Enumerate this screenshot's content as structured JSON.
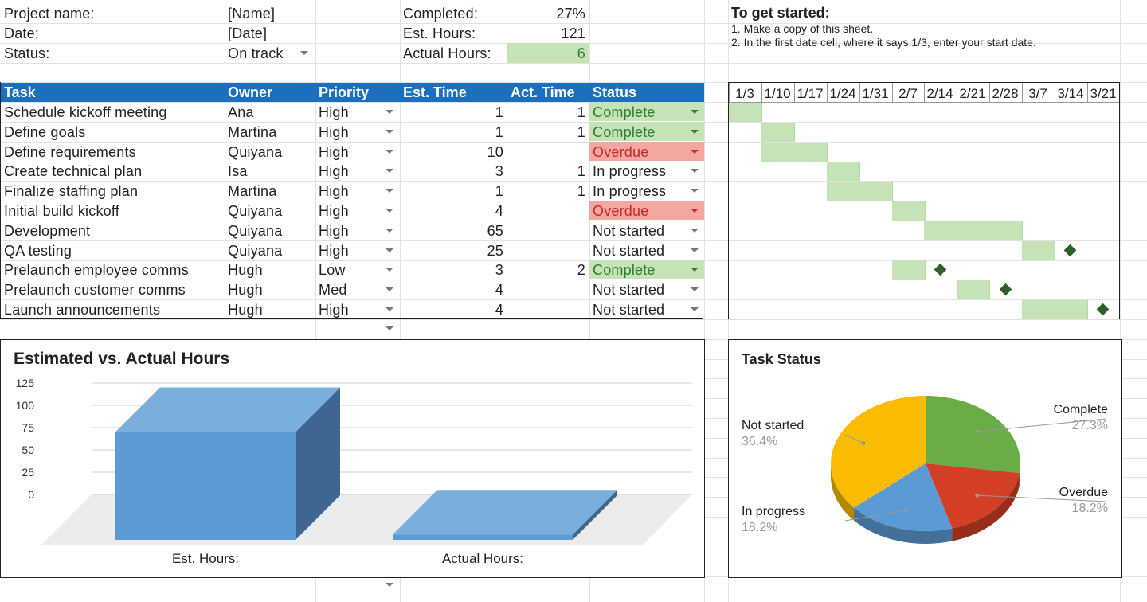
{
  "project": {
    "name_label": "Project name:",
    "name_value": "[Name]",
    "date_label": "Date:",
    "date_value": "[Date]",
    "status_label": "Status:",
    "status_value": "On track"
  },
  "summary": {
    "completed_label": "Completed:",
    "completed_value": "27%",
    "est_label": "Est. Hours:",
    "est_value": "121",
    "actual_label": "Actual Hours:",
    "actual_value": "6"
  },
  "instructions": {
    "title": "To get started:",
    "lines": [
      "1. Make a copy of this sheet.",
      "2. In the first date cell, where it says 1/3, enter your start date."
    ]
  },
  "table": {
    "headers": [
      "Task",
      "Owner",
      "Priority",
      "Est. Time",
      "Act. Time",
      "Status"
    ],
    "rows": [
      {
        "task": "Schedule kickoff meeting",
        "owner": "Ana",
        "priority": "High",
        "est": "1",
        "act": "1",
        "status": "Complete"
      },
      {
        "task": "Define goals",
        "owner": "Martina",
        "priority": "High",
        "est": "1",
        "act": "1",
        "status": "Complete"
      },
      {
        "task": "Define requirements",
        "owner": "Quiyana",
        "priority": "High",
        "est": "10",
        "act": "",
        "status": "Overdue"
      },
      {
        "task": "Create technical plan",
        "owner": "Isa",
        "priority": "High",
        "est": "3",
        "act": "1",
        "status": "In progress"
      },
      {
        "task": "Finalize staffing plan",
        "owner": "Martina",
        "priority": "High",
        "est": "1",
        "act": "1",
        "status": "In progress"
      },
      {
        "task": "Initial build kickoff",
        "owner": "Quiyana",
        "priority": "High",
        "est": "4",
        "act": "",
        "status": "Overdue"
      },
      {
        "task": "Development",
        "owner": "Quiyana",
        "priority": "High",
        "est": "65",
        "act": "",
        "status": "Not started"
      },
      {
        "task": "QA testing",
        "owner": "Quiyana",
        "priority": "High",
        "est": "25",
        "act": "",
        "status": "Not started"
      },
      {
        "task": "Prelaunch employee comms",
        "owner": "Hugh",
        "priority": "Low",
        "est": "3",
        "act": "2",
        "status": "Complete"
      },
      {
        "task": "Prelaunch customer comms",
        "owner": "Hugh",
        "priority": "Med",
        "est": "4",
        "act": "",
        "status": "Not started"
      },
      {
        "task": "Launch announcements",
        "owner": "Hugh",
        "priority": "High",
        "est": "4",
        "act": "",
        "status": "Not started"
      }
    ]
  },
  "gantt": {
    "dates": [
      "1/3",
      "1/10",
      "1/17",
      "1/24",
      "1/31",
      "2/7",
      "2/14",
      "2/21",
      "2/28",
      "3/7",
      "3/14",
      "3/21"
    ],
    "bars": [
      {
        "row": 0,
        "start": 0,
        "span": 1
      },
      {
        "row": 1,
        "start": 1,
        "span": 1
      },
      {
        "row": 2,
        "start": 1,
        "span": 2
      },
      {
        "row": 3,
        "start": 3,
        "span": 1
      },
      {
        "row": 4,
        "start": 3,
        "span": 2
      },
      {
        "row": 5,
        "start": 5,
        "span": 1
      },
      {
        "row": 6,
        "start": 6,
        "span": 3
      },
      {
        "row": 7,
        "start": 9,
        "span": 1
      },
      {
        "row": 8,
        "start": 5,
        "span": 1
      },
      {
        "row": 9,
        "start": 7,
        "span": 1
      },
      {
        "row": 10,
        "start": 9,
        "span": 2
      }
    ],
    "milestones": [
      {
        "row": 7,
        "col": 10
      },
      {
        "row": 8,
        "col": 6
      },
      {
        "row": 9,
        "col": 8
      },
      {
        "row": 10,
        "col": 11
      }
    ],
    "bar_color": "#c6e2b7",
    "milestone_color": "#2e5e2a"
  },
  "chart_data": [
    {
      "type": "bar",
      "title": "Estimated vs. Actual Hours",
      "categories": [
        "Est. Hours:",
        "Actual Hours:"
      ],
      "values": [
        121,
        6
      ],
      "yticks": [
        "125",
        "100",
        "75",
        "50",
        "25",
        "0"
      ],
      "color": "#5b9bd5"
    },
    {
      "type": "pie",
      "title": "Task Status",
      "slices": [
        {
          "label": "Complete",
          "value": 27.3,
          "pct": "27.3%",
          "color": "#6aac45"
        },
        {
          "label": "Overdue",
          "value": 18.2,
          "pct": "18.2%",
          "color": "#d33f24"
        },
        {
          "label": "In progress",
          "value": 18.2,
          "pct": "18.2%",
          "color": "#5b9bd5"
        },
        {
          "label": "Not started",
          "value": 36.4,
          "pct": "36.4%",
          "color": "#f9bc00"
        }
      ]
    }
  ]
}
